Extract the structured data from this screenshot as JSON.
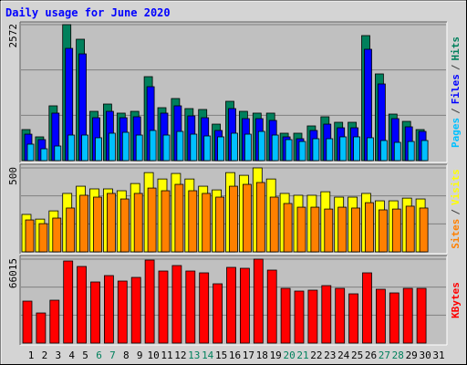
{
  "chart_data": {
    "type": "bar",
    "title": "Daily usage for June 2020",
    "categories": [
      "1",
      "2",
      "3",
      "4",
      "5",
      "6",
      "7",
      "8",
      "9",
      "10",
      "11",
      "12",
      "13",
      "14",
      "15",
      "16",
      "17",
      "18",
      "19",
      "20",
      "21",
      "22",
      "23",
      "24",
      "25",
      "26",
      "27",
      "28",
      "29",
      "30",
      "31"
    ],
    "category_colors": [
      "#000000",
      "#000000",
      "#000000",
      "#000000",
      "#000000",
      "#00805c",
      "#00805c",
      "#000000",
      "#000000",
      "#000000",
      "#000000",
      "#000000",
      "#00805c",
      "#00805c",
      "#000000",
      "#000000",
      "#000000",
      "#000000",
      "#000000",
      "#00805c",
      "#00805c",
      "#000000",
      "#000000",
      "#000000",
      "#000000",
      "#000000",
      "#00805c",
      "#00805c",
      "#000000",
      "#000000",
      "#000000"
    ],
    "legend_separator": "/",
    "panels": [
      {
        "ylim": [
          0,
          2572
        ],
        "yticks": [
          2572
        ],
        "series": [
          {
            "name": "Hits",
            "color": "#00805c",
            "values": [
              587,
              449,
              1036,
              2572,
              2296,
              932,
              1070,
              898,
              932,
              1588,
              1001,
              1174,
              984,
              967,
              690,
              1122,
              932,
              898,
              898,
              518,
              518,
              656,
              829,
              725,
              725,
              2365,
              1640,
              880,
              742,
              587,
              null
            ]
          },
          {
            "name": "Files",
            "color": "#0000ff",
            "values": [
              500,
              397,
              898,
              2123,
              2019,
              811,
              932,
              811,
              829,
              1398,
              898,
              1036,
              846,
              811,
              570,
              984,
              794,
              794,
              760,
              449,
              414,
              570,
              690,
              621,
              621,
              2106,
              1450,
              794,
              639,
              552,
              null
            ]
          },
          {
            "name": "Pages",
            "color": "#00c0ff",
            "values": [
              311,
              224,
              276,
              483,
              483,
              432,
              518,
              535,
              483,
              570,
              483,
              552,
              500,
              466,
              449,
              518,
              500,
              552,
              483,
              397,
              362,
              414,
              414,
              449,
              449,
              432,
              380,
              345,
              362,
              380,
              null
            ]
          }
        ]
      },
      {
        "ylim": [
          0,
          500
        ],
        "yticks": [
          500
        ],
        "series": [
          {
            "name": "Visits",
            "color": "#ffff00",
            "values": [
              223,
              195,
              244,
              348,
              391,
              375,
              375,
              364,
              407,
              472,
              434,
              467,
              434,
              391,
              369,
              472,
              456,
              500,
              434,
              348,
              337,
              337,
              358,
              326,
              326,
              348,
              304,
              304,
              320,
              315,
              null
            ]
          },
          {
            "name": "Sites",
            "color": "#ff8000",
            "values": [
              190,
              168,
              201,
              261,
              337,
              326,
              348,
              315,
              348,
              380,
              364,
              402,
              364,
              348,
              326,
              391,
              402,
              413,
              326,
              288,
              266,
              266,
              255,
              266,
              261,
              293,
              250,
              255,
              272,
              261,
              null
            ]
          }
        ]
      },
      {
        "ylim": [
          0,
          66015
        ],
        "yticks": [
          66015
        ],
        "series": [
          {
            "name": "KBytes",
            "color": "#ff0000",
            "values": [
              33006,
              23678,
              33722,
              64575,
              60270,
              48072,
              53095,
              48790,
              51660,
              65293,
              56683,
              60988,
              56683,
              55248,
              46638,
              59553,
              58835,
              66015,
              57400,
              43050,
              40898,
              41615,
              45203,
              43050,
              38745,
              55248,
              42333,
              39463,
              43050,
              43050,
              null
            ]
          }
        ]
      }
    ]
  }
}
